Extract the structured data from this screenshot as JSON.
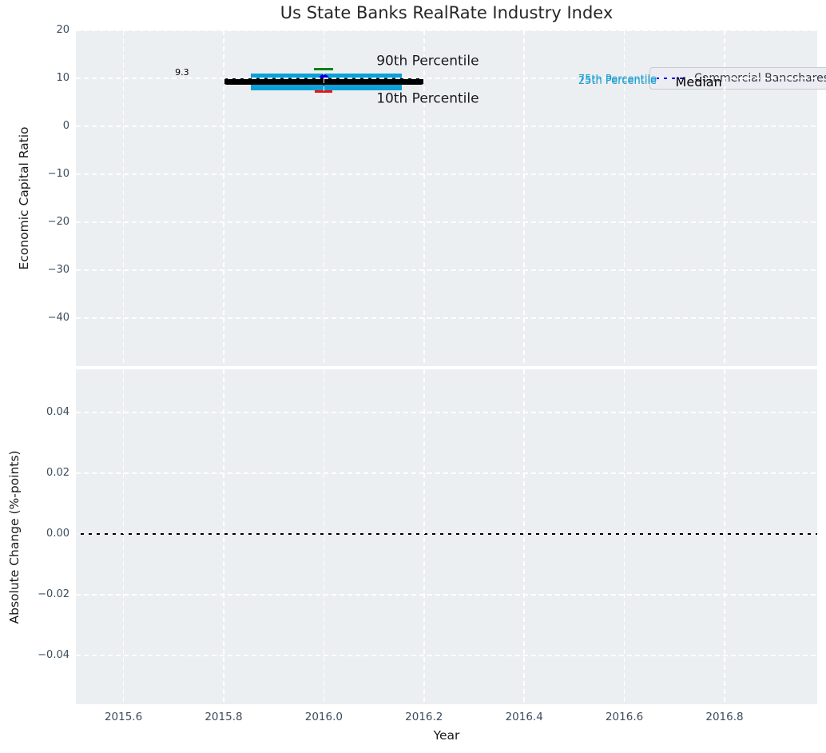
{
  "title": "Us State Banks RealRate Industry Index",
  "legend": {
    "label": "Commercial Bancshares INC Oh"
  },
  "colors": {
    "plot_bg": "#eceff1",
    "grid": "#ffffff",
    "tick_text": "#3d4c5c",
    "iqr_band": "#0d9fd6",
    "cyan_text": "#1f9ed1",
    "p90_green": "#0a830a",
    "p10_red": "#ef1212",
    "marker_blue": "#0000dd",
    "legend_line_blue": "#0000ee",
    "median_black": "#000000",
    "whisker_gray": "#4a4a4a"
  },
  "chart_data": [
    {
      "type": "box-whisker-timeline",
      "title": "Us State Banks RealRate Industry Index",
      "ylabel": "Economic Capital Ratio",
      "ylim": [
        -50,
        20
      ],
      "yticks": {
        "values": [
          20,
          10,
          0,
          -10,
          -20,
          -30,
          -40
        ],
        "labels": [
          "20",
          "10",
          "0",
          "−10",
          "−20",
          "−30",
          "−40"
        ]
      },
      "grid": true,
      "legend_position": "upper right",
      "series": {
        "name": "Commercial Bancshares INC Oh",
        "x": 2016.0,
        "median": 9.3,
        "median_label": "9.3",
        "p75": 11.0,
        "p25": 7.5,
        "p90": 12.0,
        "p10": 7.3,
        "company_value": 9.7,
        "median_span": [
          2015.8,
          2016.2
        ],
        "iqr_span": [
          2015.855,
          2016.155
        ]
      },
      "annotations": [
        {
          "id": "median-value",
          "text": "9.3",
          "x": 2015.717,
          "y": 11.2,
          "anchor": "center",
          "color": "#000000",
          "size": 11
        },
        {
          "id": "p90-label",
          "text": "90th Percentile",
          "x": 2016.105,
          "y": 13.5,
          "anchor": "left",
          "color": "#1a1a1a",
          "size": 17
        },
        {
          "id": "p10-label",
          "text": "10th Percentile",
          "x": 2016.105,
          "y": 5.6,
          "anchor": "left",
          "color": "#1a1a1a",
          "size": 17
        },
        {
          "id": "p75-label",
          "text": "75th Percentile",
          "x": 2016.508,
          "y": 9.75,
          "anchor": "left",
          "color": "#1f9ed1",
          "size": 13
        },
        {
          "id": "p25-label",
          "text": "25th Percentile",
          "x": 2016.508,
          "y": 9.35,
          "anchor": "left",
          "color": "#1f9ed1",
          "size": 13
        },
        {
          "id": "median-label",
          "text": "Median",
          "x": 2016.702,
          "y": 9.2,
          "anchor": "left",
          "color": "#000000",
          "size": 16
        }
      ]
    },
    {
      "type": "line",
      "ylabel": "Absolute Change (%-points)",
      "ylim": [
        -0.0561,
        0.0542
      ],
      "yticks": {
        "values": [
          0.04,
          0.02,
          0,
          -0.02,
          -0.04
        ],
        "labels": [
          "0.04",
          "0.02",
          "0.00",
          "−0.02",
          "−0.04"
        ]
      },
      "hline_y": 0,
      "grid": true,
      "xlabel": "Year",
      "xlim": [
        2015.505,
        2016.985
      ],
      "xticks": {
        "values": [
          2015.6,
          2015.8,
          2016.0,
          2016.2,
          2016.4,
          2016.6,
          2016.8
        ],
        "labels": [
          "2015.6",
          "2015.8",
          "2016.0",
          "2016.2",
          "2016.4",
          "2016.6",
          "2016.8"
        ]
      }
    }
  ]
}
